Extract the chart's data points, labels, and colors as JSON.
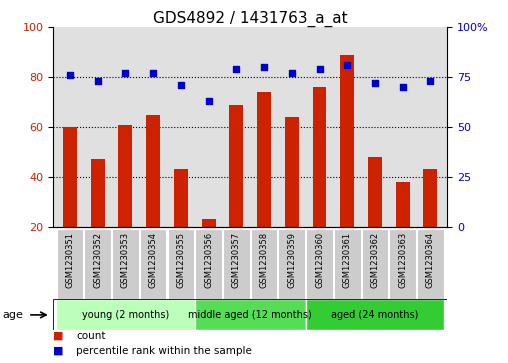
{
  "title": "GDS4892 / 1431763_a_at",
  "samples": [
    "GSM1230351",
    "GSM1230352",
    "GSM1230353",
    "GSM1230354",
    "GSM1230355",
    "GSM1230356",
    "GSM1230357",
    "GSM1230358",
    "GSM1230359",
    "GSM1230360",
    "GSM1230361",
    "GSM1230362",
    "GSM1230363",
    "GSM1230364"
  ],
  "counts": [
    60,
    47,
    61,
    65,
    43,
    23,
    69,
    74,
    64,
    76,
    89,
    48,
    38,
    43
  ],
  "percentiles": [
    76,
    73,
    77,
    77,
    71,
    63,
    79,
    80,
    77,
    79,
    81,
    72,
    70,
    73
  ],
  "bar_color": "#cc2200",
  "dot_color": "#0000cc",
  "ylim_left": [
    20,
    100
  ],
  "ylim_right": [
    0,
    100
  ],
  "yticks_left": [
    20,
    40,
    60,
    80,
    100
  ],
  "yticks_right": [
    0,
    25,
    50,
    75,
    100
  ],
  "ytick_labels_right": [
    "0",
    "25",
    "50",
    "75",
    "100%"
  ],
  "grid_values": [
    40,
    60,
    80
  ],
  "groups": [
    {
      "label": "young (2 months)",
      "start": 0,
      "end": 5,
      "color": "#bbffbb"
    },
    {
      "label": "middle aged (12 months)",
      "start": 5,
      "end": 9,
      "color": "#55dd55"
    },
    {
      "label": "aged (24 months)",
      "start": 9,
      "end": 14,
      "color": "#33cc33"
    }
  ],
  "age_label": "age",
  "legend": [
    {
      "label": "count",
      "color": "#cc2200"
    },
    {
      "label": "percentile rank within the sample",
      "color": "#0000cc"
    }
  ],
  "background_color": "#ffffff",
  "plot_bg_color": "#e0e0e0",
  "sample_box_color": "#cccccc",
  "title_fontsize": 11,
  "tick_fontsize": 8,
  "sample_fontsize": 6
}
